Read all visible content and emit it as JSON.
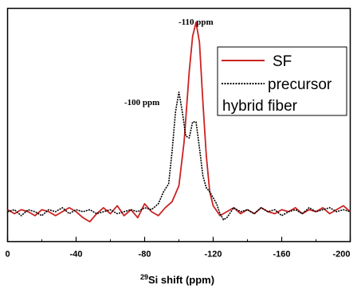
{
  "chart_data": {
    "type": "line",
    "xlabel_sup": "29",
    "xlabel": "Si shift (ppm)",
    "xlim": [
      0,
      -200
    ],
    "ylim": [
      -0.15,
      1.02
    ],
    "x_ticks": [
      0,
      -40,
      -80,
      -120,
      -160,
      -200
    ],
    "x_tick_labels": [
      "0",
      "-40",
      "-80",
      "-120",
      "-160",
      "-200"
    ],
    "y_ticks_labeled": false,
    "legend_position": "top-right",
    "legend_title": "hybrid fiber",
    "annotations": [
      {
        "text": "-110 ppm",
        "x": -110,
        "y": 1.0
      },
      {
        "text": "-100 ppm",
        "x": -100,
        "y": 0.69
      }
    ],
    "series": [
      {
        "name": "SF",
        "color": "#cc2222",
        "style": "solid",
        "points": [
          [
            0,
            0.01
          ],
          [
            -4,
            -0.01
          ],
          [
            -8,
            0.01
          ],
          [
            -12,
            0.0
          ],
          [
            -16,
            -0.02
          ],
          [
            -20,
            0.01
          ],
          [
            -24,
            0.0
          ],
          [
            -28,
            -0.02
          ],
          [
            -32,
            0.0
          ],
          [
            -36,
            0.02
          ],
          [
            -40,
            0.0
          ],
          [
            -44,
            -0.03
          ],
          [
            -48,
            -0.05
          ],
          [
            -52,
            -0.01
          ],
          [
            -56,
            0.02
          ],
          [
            -60,
            -0.01
          ],
          [
            -64,
            0.03
          ],
          [
            -68,
            -0.02
          ],
          [
            -72,
            0.01
          ],
          [
            -76,
            -0.03
          ],
          [
            -80,
            0.04
          ],
          [
            -84,
            0.0
          ],
          [
            -88,
            -0.02
          ],
          [
            -92,
            0.02
          ],
          [
            -96,
            0.05
          ],
          [
            -100,
            0.13
          ],
          [
            -103,
            0.35
          ],
          [
            -106,
            0.7
          ],
          [
            -108,
            0.88
          ],
          [
            -110,
            0.95
          ],
          [
            -112,
            0.85
          ],
          [
            -114,
            0.55
          ],
          [
            -116,
            0.28
          ],
          [
            -118,
            0.1
          ],
          [
            -120,
            0.03
          ],
          [
            -124,
            -0.02
          ],
          [
            -128,
            0.0
          ],
          [
            -132,
            0.02
          ],
          [
            -136,
            -0.01
          ],
          [
            -140,
            0.01
          ],
          [
            -144,
            -0.01
          ],
          [
            -148,
            0.02
          ],
          [
            -152,
            0.0
          ],
          [
            -156,
            -0.01
          ],
          [
            -160,
            0.01
          ],
          [
            -164,
            0.0
          ],
          [
            -168,
            0.02
          ],
          [
            -172,
            -0.01
          ],
          [
            -176,
            0.01
          ],
          [
            -180,
            0.0
          ],
          [
            -184,
            0.02
          ],
          [
            -188,
            -0.01
          ],
          [
            -192,
            0.01
          ],
          [
            -196,
            0.03
          ],
          [
            -200,
            0.0
          ]
        ]
      },
      {
        "name": "precursor",
        "color": "#000000",
        "style": "dotted",
        "points": [
          [
            0,
            0.0
          ],
          [
            -4,
            0.01
          ],
          [
            -8,
            -0.02
          ],
          [
            -12,
            0.01
          ],
          [
            -16,
            0.0
          ],
          [
            -20,
            -0.02
          ],
          [
            -24,
            0.01
          ],
          [
            -28,
            0.0
          ],
          [
            -32,
            0.02
          ],
          [
            -36,
            -0.01
          ],
          [
            -40,
            0.01
          ],
          [
            -44,
            0.0
          ],
          [
            -48,
            0.01
          ],
          [
            -52,
            -0.01
          ],
          [
            -56,
            0.0
          ],
          [
            -60,
            0.01
          ],
          [
            -64,
            -0.01
          ],
          [
            -68,
            0.0
          ],
          [
            -72,
            0.01
          ],
          [
            -76,
            0.0
          ],
          [
            -80,
            0.02
          ],
          [
            -84,
            0.01
          ],
          [
            -88,
            0.04
          ],
          [
            -91,
            0.1
          ],
          [
            -94,
            0.14
          ],
          [
            -96,
            0.3
          ],
          [
            -98,
            0.5
          ],
          [
            -100,
            0.6
          ],
          [
            -102,
            0.5
          ],
          [
            -104,
            0.38
          ],
          [
            -106,
            0.37
          ],
          [
            -108,
            0.45
          ],
          [
            -110,
            0.45
          ],
          [
            -112,
            0.32
          ],
          [
            -114,
            0.18
          ],
          [
            -116,
            0.12
          ],
          [
            -118,
            0.1
          ],
          [
            -120,
            0.07
          ],
          [
            -122,
            0.04
          ],
          [
            -124,
            -0.01
          ],
          [
            -126,
            -0.04
          ],
          [
            -128,
            -0.03
          ],
          [
            -132,
            0.02
          ],
          [
            -136,
            0.0
          ],
          [
            -140,
            0.01
          ],
          [
            -144,
            -0.01
          ],
          [
            -148,
            0.02
          ],
          [
            -152,
            0.0
          ],
          [
            -156,
            0.01
          ],
          [
            -160,
            -0.02
          ],
          [
            -164,
            0.0
          ],
          [
            -168,
            0.01
          ],
          [
            -172,
            -0.01
          ],
          [
            -176,
            0.02
          ],
          [
            -180,
            0.0
          ],
          [
            -184,
            0.01
          ],
          [
            -188,
            0.02
          ],
          [
            -192,
            0.0
          ],
          [
            -196,
            0.01
          ],
          [
            -200,
            0.0
          ]
        ]
      }
    ]
  }
}
